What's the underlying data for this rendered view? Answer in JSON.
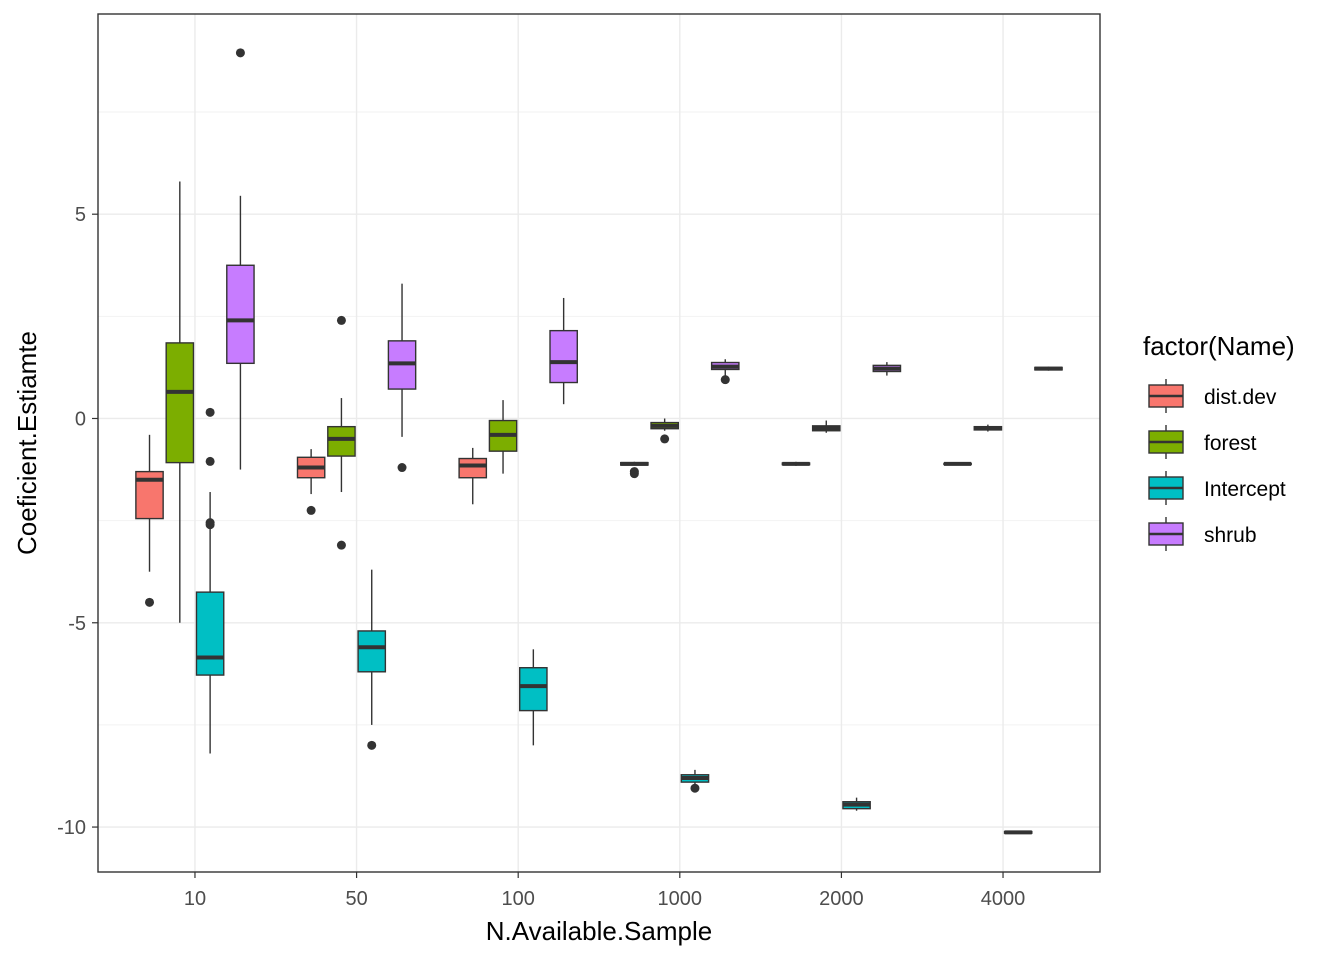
{
  "chart_data": {
    "type": "boxplot",
    "xlabel": "N.Available.Sample",
    "ylabel": "Coeficient.Estiamte",
    "categories": [
      "10",
      "50",
      "100",
      "1000",
      "2000",
      "4000"
    ],
    "ylim": [
      -11.1,
      9.9
    ],
    "y_ticks": [
      -10,
      -5,
      0,
      5
    ],
    "grid": true,
    "legend": {
      "title": "factor(Name)",
      "position": "right",
      "entries": [
        "dist.dev",
        "forest",
        "Intercept",
        "shrub"
      ]
    },
    "colors": {
      "dist.dev": "#F8766D",
      "forest": "#7CAE00",
      "Intercept": "#00BFC4",
      "shrub": "#C77CFF"
    },
    "series": [
      {
        "name": "dist.dev",
        "boxes": [
          {
            "category": "10",
            "whisker_low": -3.75,
            "q1": -2.45,
            "median": -1.5,
            "q3": -1.3,
            "whisker_high": -0.4,
            "outliers": [
              -4.5
            ]
          },
          {
            "category": "50",
            "whisker_low": -1.85,
            "q1": -1.45,
            "median": -1.2,
            "q3": -0.95,
            "whisker_high": -0.75,
            "outliers": [
              -2.25
            ]
          },
          {
            "category": "100",
            "whisker_low": -2.1,
            "q1": -1.45,
            "median": -1.15,
            "q3": -0.98,
            "whisker_high": -0.72,
            "outliers": []
          },
          {
            "category": "1000",
            "whisker_low": -1.15,
            "q1": -1.14,
            "median": -1.11,
            "q3": -1.08,
            "whisker_high": -1.06,
            "outliers": [
              -1.3,
              -1.35
            ]
          },
          {
            "category": "2000",
            "whisker_low": -1.16,
            "q1": -1.13,
            "median": -1.11,
            "q3": -1.09,
            "whisker_high": -1.06,
            "outliers": []
          },
          {
            "category": "4000",
            "whisker_low": -1.13,
            "q1": -1.12,
            "median": -1.11,
            "q3": -1.1,
            "whisker_high": -1.09,
            "outliers": []
          }
        ]
      },
      {
        "name": "forest",
        "boxes": [
          {
            "category": "10",
            "whisker_low": -5.0,
            "q1": -1.08,
            "median": 0.65,
            "q3": 1.85,
            "whisker_high": 5.8,
            "outliers": []
          },
          {
            "category": "50",
            "whisker_low": -1.8,
            "q1": -0.92,
            "median": -0.5,
            "q3": -0.2,
            "whisker_high": 0.5,
            "outliers": [
              2.4,
              -3.1
            ]
          },
          {
            "category": "100",
            "whisker_low": -1.35,
            "q1": -0.8,
            "median": -0.4,
            "q3": -0.05,
            "whisker_high": 0.45,
            "outliers": []
          },
          {
            "category": "1000",
            "whisker_low": -0.3,
            "q1": -0.25,
            "median": -0.18,
            "q3": -0.1,
            "whisker_high": 0.0,
            "outliers": [
              -0.5
            ]
          },
          {
            "category": "2000",
            "whisker_low": -0.35,
            "q1": -0.3,
            "median": -0.24,
            "q3": -0.18,
            "whisker_high": -0.05,
            "outliers": []
          },
          {
            "category": "4000",
            "whisker_low": -0.32,
            "q1": -0.28,
            "median": -0.24,
            "q3": -0.2,
            "whisker_high": -0.15,
            "outliers": []
          }
        ]
      },
      {
        "name": "Intercept",
        "boxes": [
          {
            "category": "10",
            "whisker_low": -8.2,
            "q1": -6.28,
            "median": -5.85,
            "q3": -4.25,
            "whisker_high": -1.8,
            "outliers": [
              0.15,
              -1.05,
              -2.55,
              -2.6
            ]
          },
          {
            "category": "50",
            "whisker_low": -7.5,
            "q1": -6.2,
            "median": -5.6,
            "q3": -5.2,
            "whisker_high": -3.7,
            "outliers": [
              -8.0
            ]
          },
          {
            "category": "100",
            "whisker_low": -8.0,
            "q1": -7.15,
            "median": -6.55,
            "q3": -6.1,
            "whisker_high": -5.65,
            "outliers": []
          },
          {
            "category": "1000",
            "whisker_low": -8.95,
            "q1": -8.9,
            "median": -8.8,
            "q3": -8.72,
            "whisker_high": -8.6,
            "outliers": [
              -9.05
            ]
          },
          {
            "category": "2000",
            "whisker_low": -9.6,
            "q1": -9.55,
            "median": -9.45,
            "q3": -9.38,
            "whisker_high": -9.28,
            "outliers": []
          },
          {
            "category": "4000",
            "whisker_low": -10.17,
            "q1": -10.15,
            "median": -10.13,
            "q3": -10.11,
            "whisker_high": -10.09,
            "outliers": []
          }
        ]
      },
      {
        "name": "shrub",
        "boxes": [
          {
            "category": "10",
            "whisker_low": -1.25,
            "q1": 1.35,
            "median": 2.4,
            "q3": 3.75,
            "whisker_high": 5.45,
            "outliers": [
              8.95
            ]
          },
          {
            "category": "50",
            "whisker_low": -0.45,
            "q1": 0.72,
            "median": 1.35,
            "q3": 1.9,
            "whisker_high": 3.3,
            "outliers": [
              -1.2
            ]
          },
          {
            "category": "100",
            "whisker_low": 0.35,
            "q1": 0.88,
            "median": 1.38,
            "q3": 2.15,
            "whisker_high": 2.95,
            "outliers": []
          },
          {
            "category": "1000",
            "whisker_low": 1.05,
            "q1": 1.2,
            "median": 1.27,
            "q3": 1.37,
            "whisker_high": 1.45,
            "outliers": [
              0.95
            ]
          },
          {
            "category": "2000",
            "whisker_low": 1.05,
            "q1": 1.15,
            "median": 1.22,
            "q3": 1.3,
            "whisker_high": 1.38,
            "outliers": []
          },
          {
            "category": "4000",
            "whisker_low": 1.17,
            "q1": 1.19,
            "median": 1.22,
            "q3": 1.25,
            "whisker_high": 1.27,
            "outliers": []
          }
        ]
      }
    ]
  }
}
